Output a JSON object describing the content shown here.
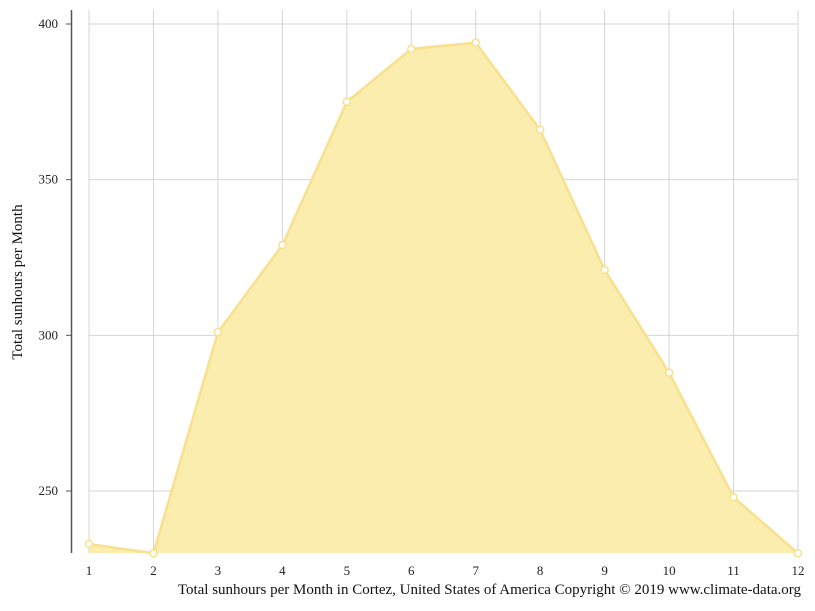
{
  "chart_data": {
    "type": "area",
    "x": [
      1,
      2,
      3,
      4,
      5,
      6,
      7,
      8,
      9,
      10,
      11,
      12
    ],
    "series": [
      {
        "values": [
          233,
          230,
          301,
          329,
          375,
          392,
          394,
          366,
          321,
          288,
          248,
          230
        ]
      }
    ],
    "xlabel": "",
    "ylabel": "Total sunhours per Month",
    "xticks": [
      1,
      2,
      3,
      4,
      5,
      6,
      7,
      8,
      9,
      10,
      11,
      12
    ],
    "yticks": [
      250,
      300,
      350,
      400
    ],
    "xlim": [
      1,
      12
    ],
    "ylim": [
      230,
      405
    ],
    "grid": true,
    "legend": "none",
    "colors": {
      "fill": "#faedae",
      "line": "#f8e08e",
      "marker_fill": "#ffffff",
      "grid": "#d4d4d4",
      "axis": "#555555"
    }
  },
  "caption": "Total sunhours per Month in Cortez, United States of America Copyright © 2019 www.climate-data.org"
}
